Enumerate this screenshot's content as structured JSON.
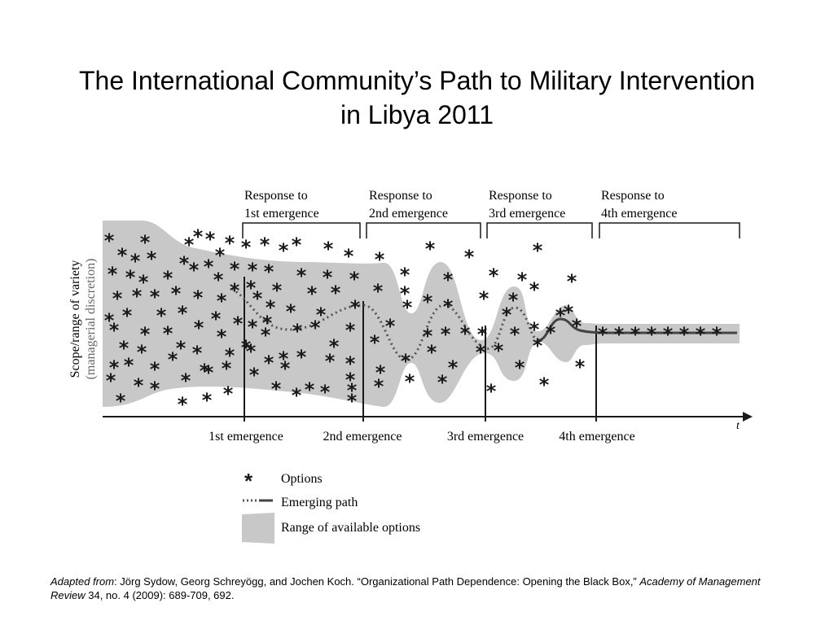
{
  "title": {
    "line1": "The International Community’s Path to Military Intervention",
    "line2": "in Libya 2011"
  },
  "diagram": {
    "y_axis_label_line1": "Scope/range of variety",
    "y_axis_label_line2": "(managerial discretion)",
    "x_axis_label": "t",
    "responses": [
      {
        "line1": "Response to",
        "line2": "1st emergence"
      },
      {
        "line1": "Response to",
        "line2": "2nd emergence"
      },
      {
        "line1": "Response to",
        "line2": "3rd emergence"
      },
      {
        "line1": "Response to",
        "line2": "4th emergence"
      }
    ],
    "emergences": [
      "1st emergence",
      "2nd emergence",
      "3rd emergence",
      "4th emergence"
    ],
    "option_symbol": "*",
    "legend": {
      "options": "Options",
      "emerging_path": "Emerging path",
      "range": "Range of available options"
    },
    "colors": {
      "range_fill": "#c8c8c8",
      "ink": "#1a1a1a",
      "path": "#555555"
    }
  },
  "caption": {
    "adapted_from": "Adapted from",
    "authors": ": Jörg Sydow, Georg Schreyögg, and Jochen Koch. “Organizational Path Dependence: Opening the Black Box,” ",
    "journal": "Academy of Management Review",
    "details": " 34, no. 4 (2009): 689-709, 692."
  }
}
